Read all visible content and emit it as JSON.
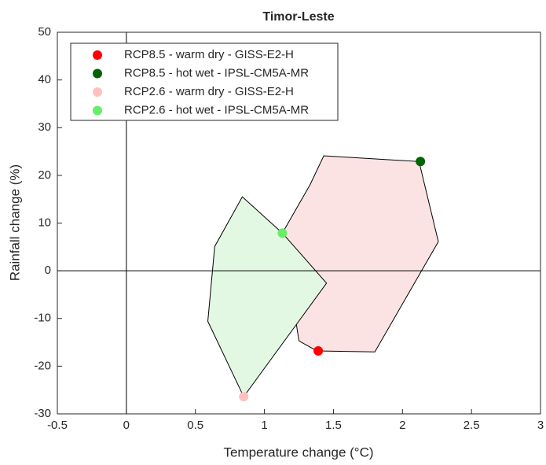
{
  "chart_data": {
    "type": "scatter",
    "title": "Timor-Leste",
    "x_label": "Temperature change (°C)",
    "y_label": "Rainfall change (%)",
    "xlim": [
      -0.5,
      3
    ],
    "ylim": [
      -30,
      50
    ],
    "xticks": [
      -0.5,
      0,
      0.5,
      1,
      1.5,
      2,
      2.5,
      3
    ],
    "yticks": [
      -30,
      -20,
      -10,
      0,
      10,
      20,
      30,
      40,
      50
    ],
    "legend": "upper-left",
    "areas": [
      {
        "color": "#fce3e3",
        "x": [
          1.13,
          1.33,
          1.43,
          2.12,
          2.26,
          1.8,
          1.38,
          1.25
        ],
        "values": [
          7.9,
          18,
          24.1,
          22.9,
          6.1,
          -17,
          -16.8,
          -14.7
        ]
      },
      {
        "color": "#e3f8e3",
        "x": [
          0.84,
          1.13,
          1.45,
          0.85,
          0.59,
          0.64
        ],
        "values": [
          15.5,
          7.9,
          -2.6,
          -26.4,
          -10.6,
          5.1
        ]
      }
    ],
    "series": [
      {
        "name": "RCP8.5 - warm dry - GISS-E2-H",
        "color": "#ff0000",
        "x": [
          1.39
        ],
        "values": [
          -16.8
        ]
      },
      {
        "name": "RCP8.5 - hot wet - IPSL-CM5A-MR",
        "color": "#006400",
        "x": [
          2.13
        ],
        "values": [
          22.9
        ]
      },
      {
        "name": "RCP2.6 - warm dry - GISS-E2-H",
        "color": "#ffc0c0",
        "x": [
          0.85
        ],
        "values": [
          -26.4
        ]
      },
      {
        "name": "RCP2.6 - hot wet - IPSL-CM5A-MR",
        "color": "#66ee66",
        "x": [
          1.13
        ],
        "values": [
          7.9
        ]
      }
    ]
  }
}
